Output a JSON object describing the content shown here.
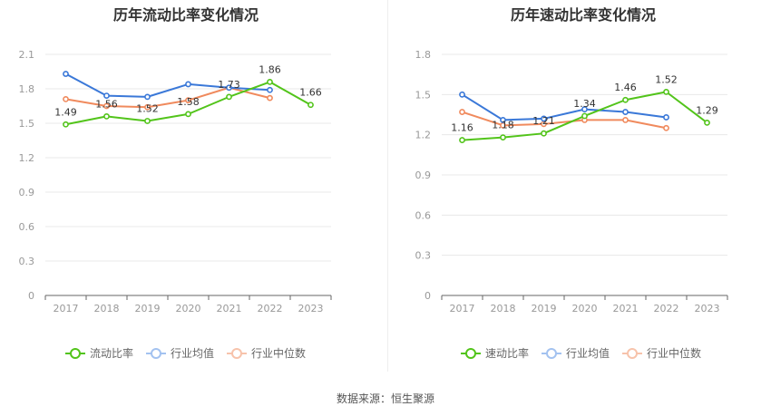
{
  "source": "数据来源：恒生聚源",
  "chart_data": [
    {
      "type": "line",
      "title": "历年流动比率变化情况",
      "categories": [
        "2017",
        "2018",
        "2019",
        "2020",
        "2021",
        "2022",
        "2023"
      ],
      "ylim": [
        0,
        2.1
      ],
      "yticks": [
        "0",
        "0.3",
        "0.6",
        "0.9",
        "1.2",
        "1.5",
        "1.8",
        "2.1"
      ],
      "grid": true,
      "legend_position": "bottom",
      "series": [
        {
          "name": "流动比率",
          "color": "#52c41a",
          "values": [
            1.49,
            1.56,
            1.52,
            1.58,
            1.73,
            1.86,
            1.66
          ],
          "labels": [
            "1.49",
            "1.56",
            "1.52",
            "1.58",
            "1.73",
            "1.86",
            "1.66"
          ]
        },
        {
          "name": "行业均值",
          "color": "#3a78d8",
          "values": [
            1.93,
            1.74,
            1.73,
            1.84,
            1.81,
            1.79,
            null
          ]
        },
        {
          "name": "行业中位数",
          "color": "#f08a5d",
          "values": [
            1.71,
            1.65,
            1.64,
            1.7,
            1.81,
            1.72,
            null
          ]
        }
      ]
    },
    {
      "type": "line",
      "title": "历年速动比率变化情况",
      "categories": [
        "2017",
        "2018",
        "2019",
        "2020",
        "2021",
        "2022",
        "2023"
      ],
      "ylim": [
        0,
        1.8
      ],
      "yticks": [
        "0",
        "0.3",
        "0.6",
        "0.9",
        "1.2",
        "1.5",
        "1.8"
      ],
      "grid": true,
      "legend_position": "bottom",
      "series": [
        {
          "name": "速动比率",
          "color": "#52c41a",
          "values": [
            1.16,
            1.18,
            1.21,
            1.34,
            1.46,
            1.52,
            1.29
          ],
          "labels": [
            "1.16",
            "1.18",
            "1.21",
            "1.34",
            "1.46",
            "1.52",
            "1.29"
          ]
        },
        {
          "name": "行业均值",
          "color": "#3a78d8",
          "values": [
            1.5,
            1.31,
            1.32,
            1.39,
            1.37,
            1.33,
            null
          ]
        },
        {
          "name": "行业中位数",
          "color": "#f08a5d",
          "values": [
            1.37,
            1.27,
            1.28,
            1.31,
            1.31,
            1.25,
            null
          ]
        }
      ]
    }
  ]
}
